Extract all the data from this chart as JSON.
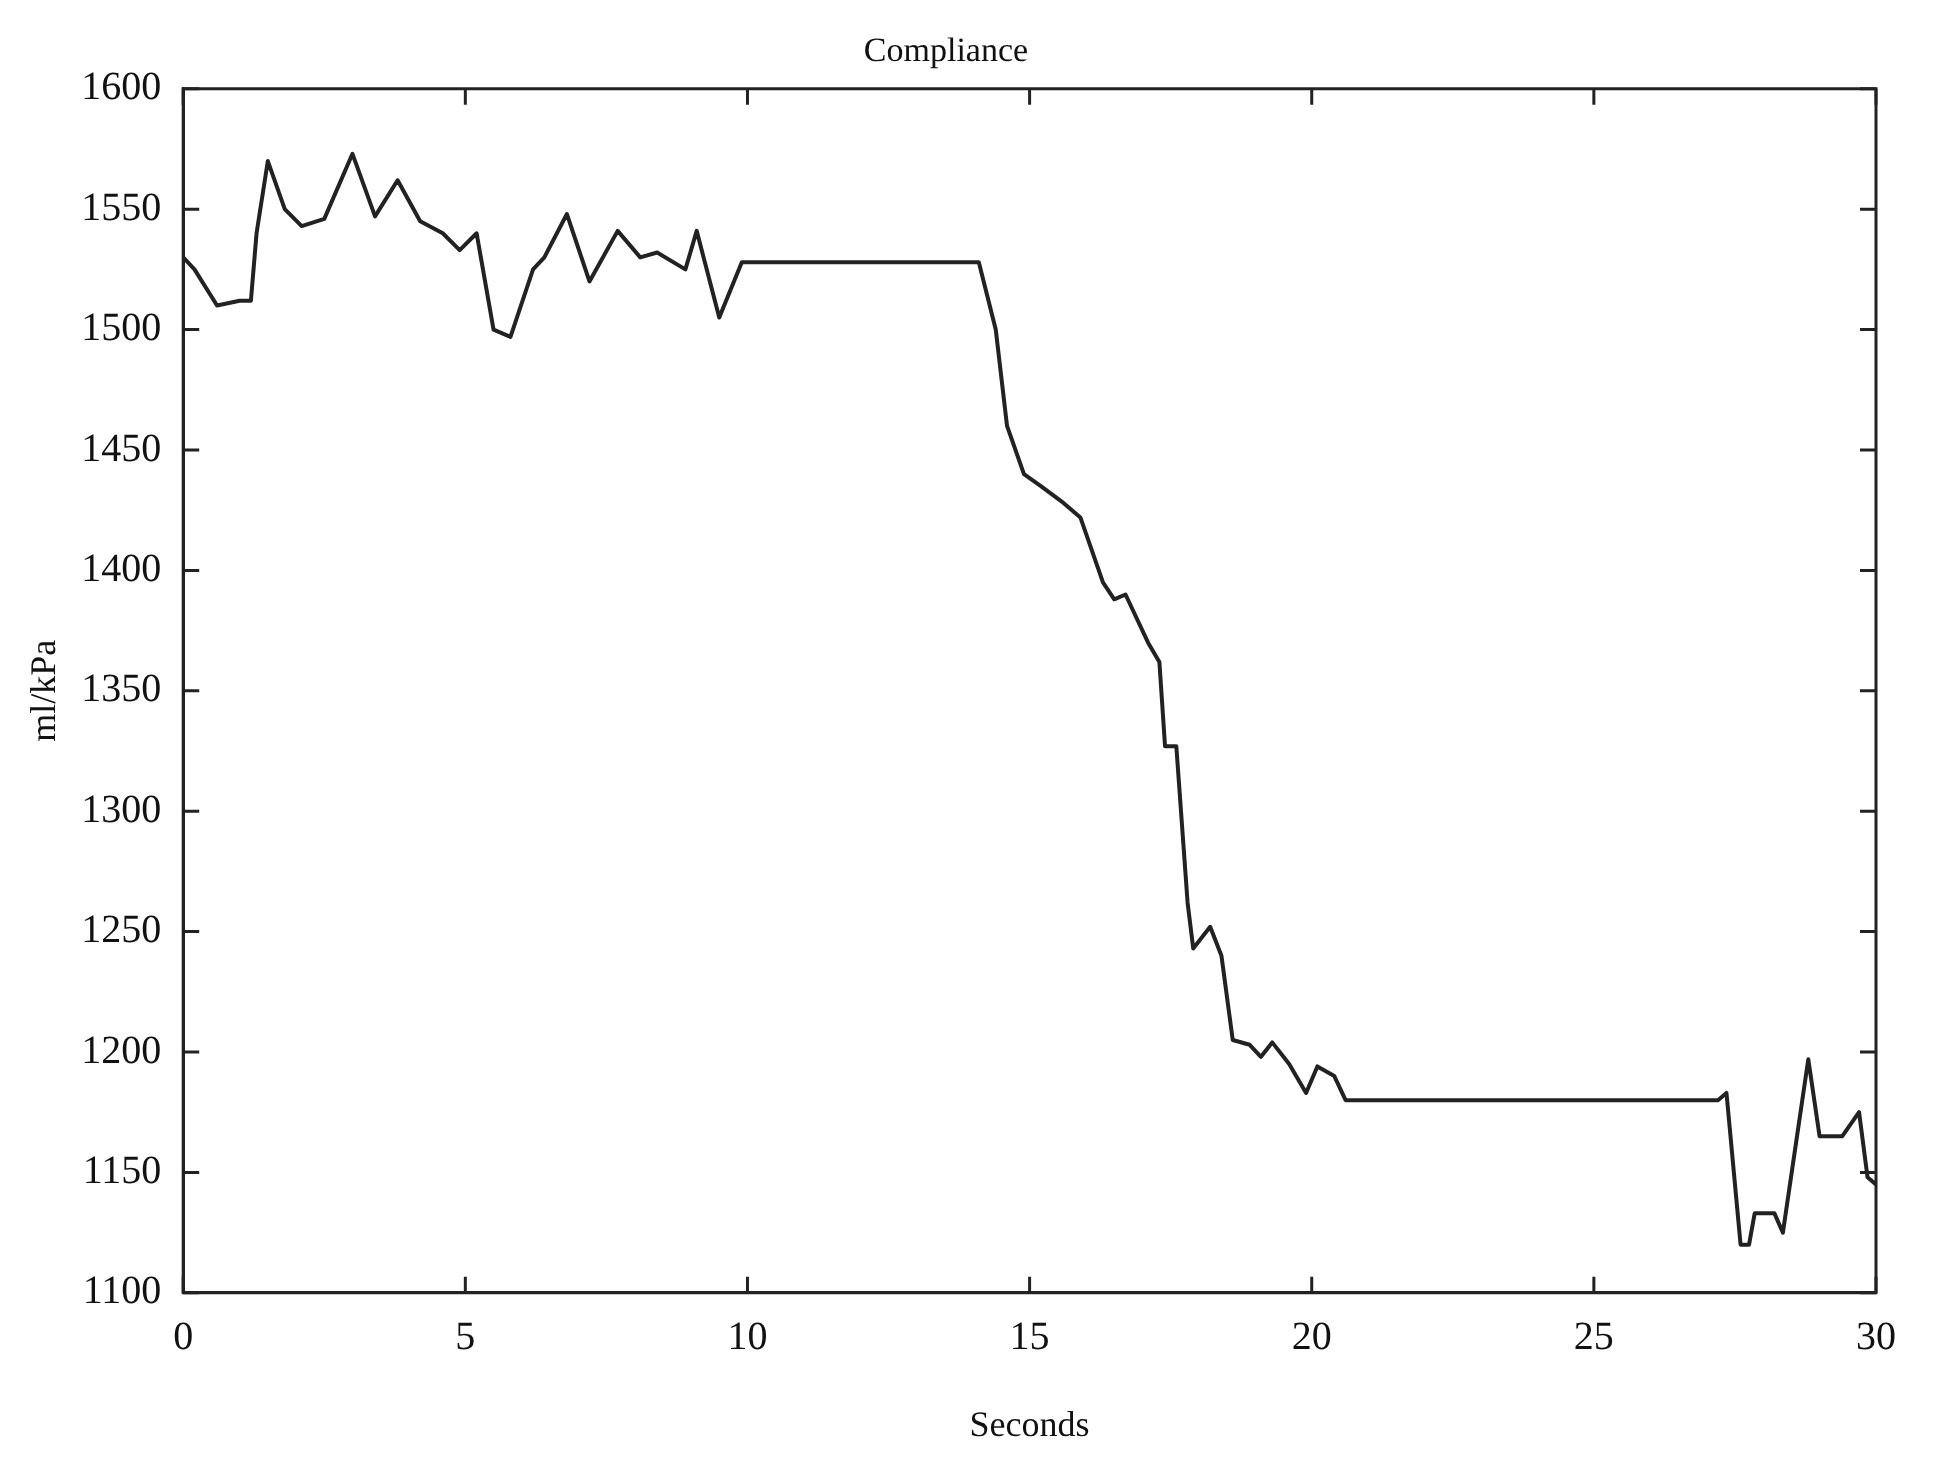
{
  "chart_data": {
    "type": "line",
    "title": "Compliance",
    "xlabel": "Seconds",
    "ylabel": "ml/kPa",
    "xlim": [
      0,
      30
    ],
    "ylim": [
      1100,
      1600
    ],
    "xticks": [
      0,
      5,
      10,
      15,
      20,
      25,
      30
    ],
    "yticks": [
      1100,
      1150,
      1200,
      1250,
      1300,
      1350,
      1400,
      1450,
      1500,
      1550,
      1600
    ],
    "grid": false,
    "legend": false,
    "series": [
      {
        "color": "#222222",
        "x": [
          0,
          0.2,
          0.6,
          1,
          1.2,
          1.3,
          1.5,
          1.8,
          2.1,
          2.5,
          3,
          3.4,
          3.8,
          4.2,
          4.6,
          4.9,
          5.2,
          5.5,
          5.8,
          6.2,
          6.4,
          6.8,
          7.2,
          7.7,
          8.1,
          8.4,
          8.9,
          9.1,
          9.5,
          9.9,
          14.1,
          14.4,
          14.6,
          14.9,
          15.2,
          15.6,
          15.9,
          16.3,
          16.5,
          16.7,
          17.1,
          17.3,
          17.4,
          17.6,
          17.8,
          17.9,
          18.2,
          18.4,
          18.6,
          18.9,
          19.1,
          19.3,
          19.6,
          19.9,
          20.1,
          20.4,
          20.6,
          27.2,
          27.35,
          27.6,
          27.75,
          27.85,
          28.2,
          28.35,
          28.8,
          29,
          29.4,
          29.7,
          29.85,
          30
        ],
        "values": [
          1530,
          1525,
          1510,
          1512,
          1512,
          1540,
          1570,
          1550,
          1543,
          1546,
          1573,
          1547,
          1562,
          1545,
          1540,
          1533,
          1540,
          1500,
          1497,
          1525,
          1530,
          1548,
          1520,
          1541,
          1530,
          1532,
          1525,
          1541,
          1505,
          1528,
          1528,
          1500,
          1460,
          1440,
          1435,
          1428,
          1422,
          1395,
          1388,
          1390,
          1370,
          1362,
          1327,
          1327,
          1262,
          1243,
          1252,
          1240,
          1205,
          1203,
          1198,
          1204,
          1195,
          1183,
          1194,
          1190,
          1180,
          1180,
          1183,
          1120,
          1120,
          1133,
          1133,
          1125,
          1197,
          1165,
          1165,
          1175,
          1148,
          1145
        ]
      }
    ]
  }
}
